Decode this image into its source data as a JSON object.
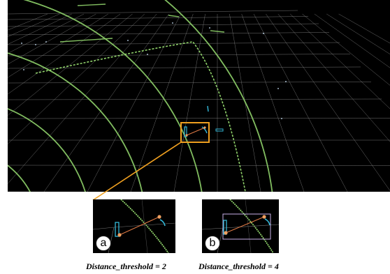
{
  "colors": {
    "background": "#000000",
    "grid": "#9a9a9a",
    "ring": "#8fd16a",
    "highlight_box": "#f0a020",
    "cluster": "#33b8d8",
    "connector": "#e07a45"
  },
  "icons": {
    "highlight": "orange-rectangle-icon",
    "badge_a": "letter-a-circle-icon",
    "badge_b": "letter-b-circle-icon"
  },
  "insets": [
    {
      "label": "a",
      "caption": "Distance_threshold = 2"
    },
    {
      "label": "b",
      "caption": "Distance_threshold = 4"
    }
  ]
}
